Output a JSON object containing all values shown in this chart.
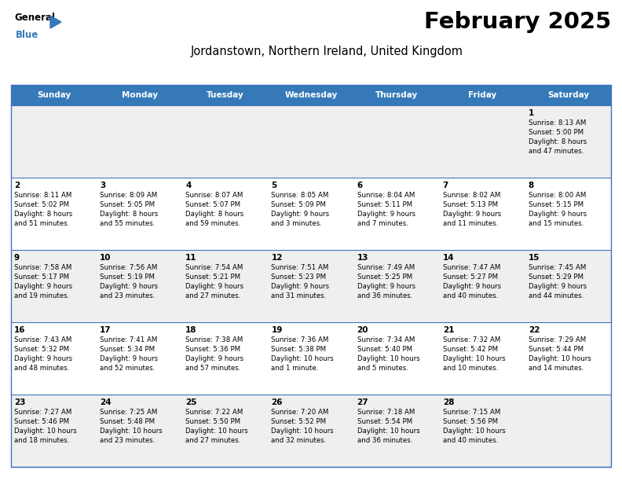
{
  "title": "February 2025",
  "subtitle": "Jordanstown, Northern Ireland, United Kingdom",
  "header_bg": "#3579B8",
  "header_text_color": "#FFFFFF",
  "day_names": [
    "Sunday",
    "Monday",
    "Tuesday",
    "Wednesday",
    "Thursday",
    "Friday",
    "Saturday"
  ],
  "cell_bg_odd": "#EFEFEF",
  "cell_bg_even": "#FFFFFF",
  "border_color": "#4472C4",
  "text_color": "#000000",
  "logo_blue": "#3579B8",
  "calendar": [
    [
      {
        "day": null,
        "sunrise": null,
        "sunset": null,
        "daylight": null
      },
      {
        "day": null,
        "sunrise": null,
        "sunset": null,
        "daylight": null
      },
      {
        "day": null,
        "sunrise": null,
        "sunset": null,
        "daylight": null
      },
      {
        "day": null,
        "sunrise": null,
        "sunset": null,
        "daylight": null
      },
      {
        "day": null,
        "sunrise": null,
        "sunset": null,
        "daylight": null
      },
      {
        "day": null,
        "sunrise": null,
        "sunset": null,
        "daylight": null
      },
      {
        "day": 1,
        "sunrise": "8:13 AM",
        "sunset": "5:00 PM",
        "daylight": "8 hours\nand 47 minutes."
      }
    ],
    [
      {
        "day": 2,
        "sunrise": "8:11 AM",
        "sunset": "5:02 PM",
        "daylight": "8 hours\nand 51 minutes."
      },
      {
        "day": 3,
        "sunrise": "8:09 AM",
        "sunset": "5:05 PM",
        "daylight": "8 hours\nand 55 minutes."
      },
      {
        "day": 4,
        "sunrise": "8:07 AM",
        "sunset": "5:07 PM",
        "daylight": "8 hours\nand 59 minutes."
      },
      {
        "day": 5,
        "sunrise": "8:05 AM",
        "sunset": "5:09 PM",
        "daylight": "9 hours\nand 3 minutes."
      },
      {
        "day": 6,
        "sunrise": "8:04 AM",
        "sunset": "5:11 PM",
        "daylight": "9 hours\nand 7 minutes."
      },
      {
        "day": 7,
        "sunrise": "8:02 AM",
        "sunset": "5:13 PM",
        "daylight": "9 hours\nand 11 minutes."
      },
      {
        "day": 8,
        "sunrise": "8:00 AM",
        "sunset": "5:15 PM",
        "daylight": "9 hours\nand 15 minutes."
      }
    ],
    [
      {
        "day": 9,
        "sunrise": "7:58 AM",
        "sunset": "5:17 PM",
        "daylight": "9 hours\nand 19 minutes."
      },
      {
        "day": 10,
        "sunrise": "7:56 AM",
        "sunset": "5:19 PM",
        "daylight": "9 hours\nand 23 minutes."
      },
      {
        "day": 11,
        "sunrise": "7:54 AM",
        "sunset": "5:21 PM",
        "daylight": "9 hours\nand 27 minutes."
      },
      {
        "day": 12,
        "sunrise": "7:51 AM",
        "sunset": "5:23 PM",
        "daylight": "9 hours\nand 31 minutes."
      },
      {
        "day": 13,
        "sunrise": "7:49 AM",
        "sunset": "5:25 PM",
        "daylight": "9 hours\nand 36 minutes."
      },
      {
        "day": 14,
        "sunrise": "7:47 AM",
        "sunset": "5:27 PM",
        "daylight": "9 hours\nand 40 minutes."
      },
      {
        "day": 15,
        "sunrise": "7:45 AM",
        "sunset": "5:29 PM",
        "daylight": "9 hours\nand 44 minutes."
      }
    ],
    [
      {
        "day": 16,
        "sunrise": "7:43 AM",
        "sunset": "5:32 PM",
        "daylight": "9 hours\nand 48 minutes."
      },
      {
        "day": 17,
        "sunrise": "7:41 AM",
        "sunset": "5:34 PM",
        "daylight": "9 hours\nand 52 minutes."
      },
      {
        "day": 18,
        "sunrise": "7:38 AM",
        "sunset": "5:36 PM",
        "daylight": "9 hours\nand 57 minutes."
      },
      {
        "day": 19,
        "sunrise": "7:36 AM",
        "sunset": "5:38 PM",
        "daylight": "10 hours\nand 1 minute."
      },
      {
        "day": 20,
        "sunrise": "7:34 AM",
        "sunset": "5:40 PM",
        "daylight": "10 hours\nand 5 minutes."
      },
      {
        "day": 21,
        "sunrise": "7:32 AM",
        "sunset": "5:42 PM",
        "daylight": "10 hours\nand 10 minutes."
      },
      {
        "day": 22,
        "sunrise": "7:29 AM",
        "sunset": "5:44 PM",
        "daylight": "10 hours\nand 14 minutes."
      }
    ],
    [
      {
        "day": 23,
        "sunrise": "7:27 AM",
        "sunset": "5:46 PM",
        "daylight": "10 hours\nand 18 minutes."
      },
      {
        "day": 24,
        "sunrise": "7:25 AM",
        "sunset": "5:48 PM",
        "daylight": "10 hours\nand 23 minutes."
      },
      {
        "day": 25,
        "sunrise": "7:22 AM",
        "sunset": "5:50 PM",
        "daylight": "10 hours\nand 27 minutes."
      },
      {
        "day": 26,
        "sunrise": "7:20 AM",
        "sunset": "5:52 PM",
        "daylight": "10 hours\nand 32 minutes."
      },
      {
        "day": 27,
        "sunrise": "7:18 AM",
        "sunset": "5:54 PM",
        "daylight": "10 hours\nand 36 minutes."
      },
      {
        "day": 28,
        "sunrise": "7:15 AM",
        "sunset": "5:56 PM",
        "daylight": "10 hours\nand 40 minutes."
      },
      {
        "day": null,
        "sunrise": null,
        "sunset": null,
        "daylight": null
      }
    ]
  ]
}
